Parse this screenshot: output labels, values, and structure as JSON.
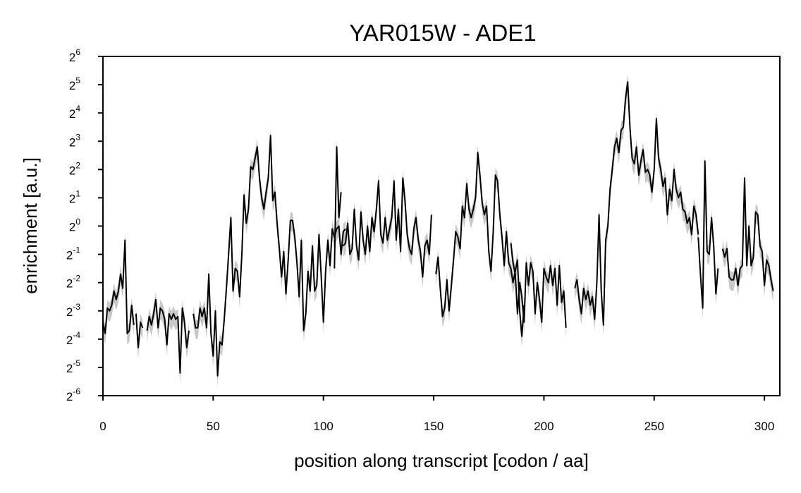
{
  "chart_data": {
    "type": "line",
    "title": "YAR015W - ADE1",
    "xlabel": "position along transcript [codon / aa]",
    "ylabel": "enrichment [a.u.]",
    "xlim": [
      0,
      307
    ],
    "ylim_log2": [
      -6,
      6
    ],
    "y_scale": "log2",
    "grid": false,
    "x_ticks": [
      0,
      50,
      100,
      150,
      200,
      250,
      300
    ],
    "y_ticks": [
      {
        "base": "2",
        "exp": "6"
      },
      {
        "base": "2",
        "exp": "5"
      },
      {
        "base": "2",
        "exp": "4"
      },
      {
        "base": "2",
        "exp": "3"
      },
      {
        "base": "2",
        "exp": "2"
      },
      {
        "base": "2",
        "exp": "1"
      },
      {
        "base": "2",
        "exp": "0"
      },
      {
        "base": "2",
        "exp": "-1"
      },
      {
        "base": "2",
        "exp": "-2"
      },
      {
        "base": "2",
        "exp": "-3"
      },
      {
        "base": "2",
        "exp": "-4"
      },
      {
        "base": "2",
        "exp": "-5"
      },
      {
        "base": "2",
        "exp": "-6"
      }
    ],
    "colors": {
      "line": "#000000",
      "band": "#c8c8c8"
    },
    "series": [
      {
        "start": 0,
        "log2_values": [
          -3.4,
          -3.8,
          -2.9,
          -3.0,
          -2.8,
          -2.3,
          -2.6,
          -2.3,
          -1.7,
          -2.2,
          -0.5,
          -3.8,
          -3.7,
          -2.8,
          -3.5
        ]
      },
      {
        "start": 15,
        "log2_values": [
          -3.1,
          -4.3,
          -3.4,
          -3.6,
          null,
          -3.7,
          -3.2,
          -3.5,
          -3.1,
          -2.6,
          -3.6,
          -2.9,
          -3.0,
          -3.3,
          -4.2,
          -3.1,
          -3.3,
          -3.1,
          -3.3,
          -3.2,
          -5.2,
          -2.9,
          -3.4,
          -4.3,
          -3.7
        ]
      },
      {
        "start": 41,
        "log2_values": [
          -3.1,
          -3.6,
          -3.6,
          -2.9,
          -3.2,
          -2.9,
          -3.6,
          -1.7,
          -3.8,
          -4.6,
          -3.0,
          -5.3,
          -4.1,
          -4.2,
          -3.3,
          -2.2,
          -1.0,
          0.3,
          -2.3,
          -1.5,
          -1.6,
          -2.5,
          -1.0,
          1.1,
          0.1,
          0.6,
          2.1,
          2.0,
          2.4,
          2.8,
          1.7,
          1.0,
          0.6,
          1.2,
          1.7,
          3.2,
          0.9,
          1.2,
          0.1,
          -0.8,
          -1.8,
          -0.9,
          -2.4,
          -1.2,
          0.2,
          0.2,
          -0.4,
          -1.3,
          -2.5,
          -0.5,
          -3.7,
          -3.1,
          -1.6,
          -2.3,
          -0.7,
          -2.3,
          -2.1,
          -0.3,
          -1.8,
          -3.4,
          -1.6,
          -0.5,
          -1.4,
          -0.1,
          -0.4,
          -0.1,
          0.0,
          -1.0,
          -0.2,
          -0.1
        ]
      },
      {
        "start": 105,
        "log2_values": [
          -1.5,
          2.8,
          0.3,
          1.2
        ]
      },
      {
        "start": 109,
        "log2_values": [
          -0.7,
          -0.6,
          0.1,
          -1.0,
          -0.8,
          0.6,
          -0.7,
          -1.2,
          0.5,
          -0.5,
          -1.0,
          0.0,
          -0.9,
          0.3,
          -0.2,
          0.6,
          1.6,
          -0.3,
          -0.6,
          0.3,
          -0.5,
          -0.1,
          0.3,
          1.6,
          -0.5,
          0.6,
          -0.9,
          1.7,
          0.9,
          -0.3,
          -0.8,
          -1.0,
          -0.1,
          0.3,
          -0.5,
          -0.9,
          -1.8,
          -0.7,
          -0.5,
          -1.0,
          0.4
        ]
      },
      {
        "start": 151,
        "log2_values": [
          -1.7,
          -1.1,
          -2.2,
          -3.2,
          -2.9,
          -1.9,
          -3.0,
          -2.1,
          -1.2,
          -0.2,
          -0.4,
          -0.8,
          0.7,
          0.3,
          1.5,
          0.6,
          0.3,
          0.6,
          1.0,
          2.6,
          1.8,
          0.8,
          0.4,
          0.7,
          -0.9,
          -1.6,
          -0.2,
          1.8,
          1.6,
          0.4,
          -0.4,
          -1.4,
          -0.2,
          -1.3,
          -1.5,
          -2.0,
          -1.6,
          -1.2,
          -3.0,
          -3.9,
          -2.8
        ]
      },
      {
        "start": 185,
        "log2_values": [
          -0.6,
          -1.3,
          -1.7,
          -3.1,
          -2.0,
          -2.5,
          -3.4,
          -1.3,
          -2.1,
          -1.3,
          -1.6,
          -3.1,
          -2.0,
          -2.6,
          -3.4,
          -1.5,
          -1.8,
          -2.0,
          -1.4,
          -2.1,
          -1.5,
          -2.8,
          -1.4,
          -2.7,
          -2.3,
          -3.6
        ]
      },
      {
        "start": 214,
        "log2_values": [
          -2.2,
          -1.9,
          -2.6,
          -3.1,
          -2.2,
          -2.6,
          -2.3,
          -2.8,
          -2.5,
          -3.3,
          -2.0,
          0.4,
          -2.3,
          -3.5,
          -0.5,
          0.0,
          1.3,
          2.0,
          2.8,
          3.1,
          2.6,
          3.4,
          3.5,
          4.5,
          5.1,
          3.5,
          2.4,
          2.2,
          2.8,
          1.8,
          2.3,
          2.7,
          1.9,
          2.0,
          1.8,
          1.2,
          2.0,
          3.8,
          2.4,
          2.0,
          1.4,
          1.7,
          0.4,
          1.3,
          0.9,
          2.0,
          1.3,
          1.0,
          1.2,
          0.6,
          0.5,
          0.1,
          0.3,
          -0.3,
          0.7,
          0.4,
          -0.3
        ]
      },
      {
        "start": 270,
        "log2_values": [
          -0.4,
          -1.7,
          -2.9,
          2.3,
          -0.9,
          -1.0,
          0.3,
          -0.7,
          -2.4,
          -1.5
        ]
      },
      {
        "start": 281,
        "log2_values": [
          -0.8,
          -1.1,
          -0.8,
          -1.8,
          -1.9,
          -1.9,
          -1.5,
          -2.1,
          -1.5,
          -1.4,
          1.7,
          -1.4,
          0.0,
          -1.4,
          -1.1,
          0.5,
          0.4,
          -0.7,
          -0.9,
          -2.1,
          -1.2,
          -1.4,
          -1.9,
          -2.3
        ]
      }
    ]
  }
}
